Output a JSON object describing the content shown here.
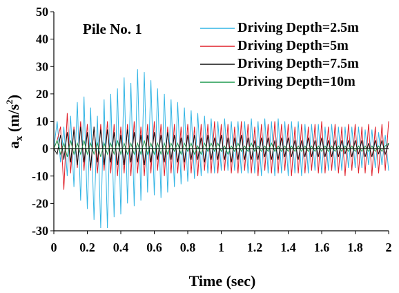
{
  "chart_data": {
    "type": "line",
    "annotation": "Pile No. 1",
    "xlabel": "Time (sec)",
    "ylabel": {
      "base": "a",
      "sub": "x",
      "unit_pre": " (m/s",
      "unit_sup": "2",
      "unit_post": ")"
    },
    "xlim": [
      0,
      2
    ],
    "ylim": [
      -30,
      50
    ],
    "x_ticks": [
      "0",
      "0.2",
      "0.4",
      "0.6",
      "0.8",
      "1",
      "1.2",
      "1.4",
      "1.6",
      "1.8",
      "2"
    ],
    "y_ticks": [
      "50",
      "40",
      "30",
      "20",
      "10",
      "0",
      "-10",
      "-20",
      "-30"
    ],
    "grid": false,
    "legend_position": "top-right",
    "colors": {
      "depth_2_5": "#33b5e5",
      "depth_5": "#e0202a",
      "depth_7_5": "#111111",
      "depth_10": "#1e9a4e"
    },
    "series": [
      {
        "name": "Driving Depth=2.5m",
        "color": "#33b5e5",
        "x": [
          0,
          0.02,
          0.04,
          0.06,
          0.08,
          0.1,
          0.12,
          0.14,
          0.16,
          0.18,
          0.2,
          0.22,
          0.24,
          0.26,
          0.28,
          0.3,
          0.32,
          0.34,
          0.36,
          0.38,
          0.4,
          0.42,
          0.44,
          0.46,
          0.48,
          0.5,
          0.52,
          0.54,
          0.56,
          0.58,
          0.6,
          0.62,
          0.64,
          0.66,
          0.68,
          0.7,
          0.72,
          0.74,
          0.76,
          0.78,
          0.8,
          0.82,
          0.84,
          0.86,
          0.88,
          0.9,
          0.92,
          0.94,
          0.96,
          0.98,
          1.0,
          1.02,
          1.04,
          1.06,
          1.08,
          1.1,
          1.12,
          1.14,
          1.16,
          1.18,
          1.2,
          1.22,
          1.24,
          1.26,
          1.28,
          1.3,
          1.32,
          1.34,
          1.36,
          1.38,
          1.4,
          1.42,
          1.44,
          1.46,
          1.48,
          1.5,
          1.52,
          1.54,
          1.56,
          1.58,
          1.6,
          1.62,
          1.64,
          1.66,
          1.68,
          1.7,
          1.72,
          1.74,
          1.76,
          1.78,
          1.8,
          1.82,
          1.84,
          1.86,
          1.88,
          1.9,
          1.92,
          1.94,
          1.96,
          1.98,
          2.0
        ],
        "y": [
          0,
          10,
          -5,
          8,
          -10,
          12,
          -14,
          17,
          -19,
          19,
          -22,
          15,
          -26,
          12,
          -29,
          18,
          -29,
          20,
          -25,
          22,
          -24,
          26,
          -20,
          24,
          -21,
          29,
          -19,
          28,
          -16,
          25,
          -17,
          22,
          -18,
          20,
          -16,
          18,
          -14,
          17,
          -13,
          15,
          -12,
          14,
          -11,
          13,
          -10,
          12,
          -9,
          11,
          -9,
          10,
          -8,
          11,
          -8,
          10,
          -8,
          10,
          -9,
          10,
          -9,
          11,
          -9,
          10,
          -10,
          11,
          -9,
          10,
          -10,
          11,
          -9,
          10,
          -10,
          10,
          -9,
          10,
          -10,
          9,
          -9,
          9,
          -8,
          9,
          -9,
          8,
          -8,
          9,
          -8,
          8,
          -8,
          8,
          -7,
          8,
          -7,
          8,
          -7,
          7,
          -6,
          7,
          -7,
          6,
          -6,
          5,
          -8
        ]
      },
      {
        "name": "Driving Depth=5m",
        "color": "#e0202a",
        "x": [
          0,
          0.02,
          0.04,
          0.06,
          0.08,
          0.1,
          0.12,
          0.14,
          0.16,
          0.18,
          0.2,
          0.22,
          0.24,
          0.26,
          0.28,
          0.3,
          0.32,
          0.34,
          0.36,
          0.38,
          0.4,
          0.42,
          0.44,
          0.46,
          0.48,
          0.5,
          0.52,
          0.54,
          0.56,
          0.58,
          0.6,
          0.62,
          0.64,
          0.66,
          0.68,
          0.7,
          0.72,
          0.74,
          0.76,
          0.78,
          0.8,
          0.82,
          0.84,
          0.86,
          0.88,
          0.9,
          0.92,
          0.94,
          0.96,
          0.98,
          1.0,
          1.02,
          1.04,
          1.06,
          1.08,
          1.1,
          1.12,
          1.14,
          1.16,
          1.18,
          1.2,
          1.22,
          1.24,
          1.26,
          1.28,
          1.3,
          1.32,
          1.34,
          1.36,
          1.38,
          1.4,
          1.42,
          1.44,
          1.46,
          1.48,
          1.5,
          1.52,
          1.54,
          1.56,
          1.58,
          1.6,
          1.62,
          1.64,
          1.66,
          1.68,
          1.7,
          1.72,
          1.74,
          1.76,
          1.78,
          1.8,
          1.82,
          1.84,
          1.86,
          1.88,
          1.9,
          1.92,
          1.94,
          1.96,
          1.98,
          2.0
        ],
        "y": [
          0,
          3,
          8,
          -15,
          13,
          -9,
          8,
          -7,
          10,
          -8,
          9,
          -8,
          8,
          -9,
          9,
          -8,
          10,
          -9,
          9,
          -10,
          8,
          -9,
          9,
          -10,
          10,
          -9,
          8,
          -10,
          9,
          -9,
          10,
          -8,
          9,
          -10,
          8,
          -9,
          9,
          -9,
          8,
          -8,
          9,
          -9,
          8,
          -10,
          9,
          -8,
          9,
          -9,
          10,
          -9,
          9,
          -8,
          9,
          -9,
          8,
          -9,
          10,
          -8,
          9,
          -9,
          8,
          -10,
          9,
          -8,
          9,
          -9,
          10,
          -9,
          9,
          -8,
          9,
          -10,
          8,
          -9,
          9,
          -9,
          8,
          -8,
          9,
          -9,
          10,
          -9,
          8,
          -8,
          9,
          -9,
          8,
          -10,
          9,
          -8,
          9,
          -9,
          8,
          -9,
          9,
          -10,
          8,
          -9,
          9,
          -8,
          10
        ]
      },
      {
        "name": "Driving Depth=7.5m",
        "color": "#111111",
        "x": [
          0,
          0.02,
          0.04,
          0.06,
          0.08,
          0.1,
          0.12,
          0.14,
          0.16,
          0.18,
          0.2,
          0.22,
          0.24,
          0.26,
          0.28,
          0.3,
          0.32,
          0.34,
          0.36,
          0.38,
          0.4,
          0.42,
          0.44,
          0.46,
          0.48,
          0.5,
          0.52,
          0.54,
          0.56,
          0.58,
          0.6,
          0.62,
          0.64,
          0.66,
          0.68,
          0.7,
          0.72,
          0.74,
          0.76,
          0.78,
          0.8,
          0.82,
          0.84,
          0.86,
          0.88,
          0.9,
          0.92,
          0.94,
          0.96,
          0.98,
          1.0,
          1.02,
          1.04,
          1.06,
          1.08,
          1.1,
          1.12,
          1.14,
          1.16,
          1.18,
          1.2,
          1.22,
          1.24,
          1.26,
          1.28,
          1.3,
          1.32,
          1.34,
          1.36,
          1.38,
          1.4,
          1.42,
          1.44,
          1.46,
          1.48,
          1.5,
          1.52,
          1.54,
          1.56,
          1.58,
          1.6,
          1.62,
          1.64,
          1.66,
          1.68,
          1.7,
          1.72,
          1.74,
          1.76,
          1.78,
          1.8,
          1.82,
          1.84,
          1.86,
          1.88,
          1.9,
          1.92,
          1.94,
          1.96,
          1.98,
          2.0
        ],
        "y": [
          0,
          -2,
          5,
          -4,
          6,
          -5,
          7,
          -6,
          8,
          -5,
          6,
          -7,
          8,
          -5,
          7,
          -6,
          7,
          -5,
          6,
          -6,
          5,
          -6,
          7,
          -5,
          6,
          -5,
          5,
          -6,
          5,
          -5,
          6,
          -4,
          5,
          -5,
          6,
          -4,
          5,
          -5,
          4,
          -5,
          5,
          -4,
          5,
          -4,
          4,
          -5,
          5,
          -4,
          4,
          -4,
          5,
          -4,
          4,
          -5,
          4,
          -4,
          5,
          -4,
          4,
          -4,
          3,
          -4,
          4,
          -3,
          4,
          -4,
          3,
          -4,
          4,
          -3,
          4,
          -3,
          3,
          -4,
          3,
          -3,
          4,
          -3,
          3,
          -3,
          4,
          -3,
          3,
          -3,
          3,
          -3,
          3,
          -2,
          3,
          -3,
          3,
          -2,
          3,
          -3,
          2,
          -3,
          3,
          -2,
          3,
          -2,
          2
        ]
      },
      {
        "name": "Driving Depth=10m",
        "color": "#1e9a4e",
        "x": [
          0,
          0.02,
          0.04,
          0.06,
          0.08,
          0.1,
          0.12,
          0.14,
          0.16,
          0.18,
          0.2,
          0.22,
          0.24,
          0.26,
          0.28,
          0.3,
          0.32,
          0.34,
          0.36,
          0.38,
          0.4,
          0.42,
          0.44,
          0.46,
          0.48,
          0.5,
          0.52,
          0.54,
          0.56,
          0.58,
          0.6,
          0.62,
          0.64,
          0.66,
          0.68,
          0.7,
          0.72,
          0.74,
          0.76,
          0.78,
          0.8,
          0.82,
          0.84,
          0.86,
          0.88,
          0.9,
          0.92,
          0.94,
          0.96,
          0.98,
          1.0,
          1.02,
          1.04,
          1.06,
          1.08,
          1.1,
          1.12,
          1.14,
          1.16,
          1.18,
          1.2,
          1.22,
          1.24,
          1.26,
          1.28,
          1.3,
          1.32,
          1.34,
          1.36,
          1.38,
          1.4,
          1.42,
          1.44,
          1.46,
          1.48,
          1.5,
          1.52,
          1.54,
          1.56,
          1.58,
          1.6,
          1.62,
          1.64,
          1.66,
          1.68,
          1.7,
          1.72,
          1.74,
          1.76,
          1.78,
          1.8,
          1.82,
          1.84,
          1.86,
          1.88,
          1.9,
          1.92,
          1.94,
          1.96,
          1.98,
          2.0
        ],
        "y": [
          0,
          3,
          -2,
          2,
          -3,
          3,
          -2,
          2,
          -2,
          3,
          -2,
          2,
          -2,
          2,
          -3,
          2,
          -2,
          2,
          -2,
          3,
          -2,
          2,
          -2,
          2,
          -2,
          2,
          -2,
          3,
          -2,
          2,
          -2,
          2,
          -2,
          2,
          -2,
          2,
          -1,
          2,
          -2,
          2,
          -1,
          2,
          -2,
          1,
          -2,
          2,
          -1,
          2,
          -1,
          2,
          -1,
          1,
          -2,
          1,
          -1,
          2,
          -1,
          1,
          -1,
          2,
          -1,
          1,
          -1,
          1,
          -1,
          2,
          -1,
          1,
          -1,
          1,
          -1,
          1,
          -1,
          1,
          -1,
          1,
          -1,
          1,
          -1,
          1,
          -1,
          1,
          -1,
          1,
          -1,
          1,
          -1,
          1,
          -1,
          1,
          -1,
          1,
          -1,
          1,
          -1,
          1,
          -1,
          1,
          -1,
          1,
          2
        ]
      }
    ]
  }
}
